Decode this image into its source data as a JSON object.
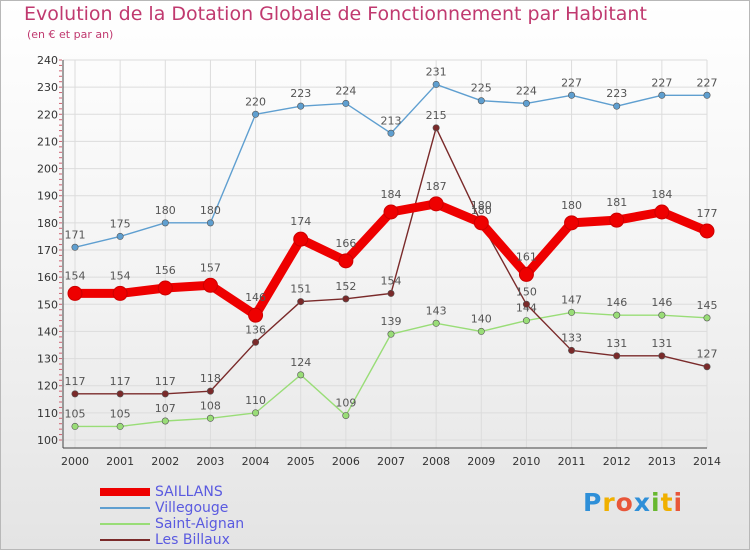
{
  "chart_data": {
    "type": "line",
    "title": "Evolution de la Dotation Globale de Fonctionnement par Habitant",
    "subtitle": "(en € et par an)",
    "xlabel": "",
    "ylabel": "",
    "ylim": [
      100,
      240
    ],
    "yticks": [
      100,
      110,
      120,
      130,
      140,
      150,
      160,
      170,
      180,
      190,
      200,
      210,
      220,
      230,
      240
    ],
    "x": [
      2000,
      2001,
      2002,
      2003,
      2004,
      2005,
      2006,
      2007,
      2008,
      2009,
      2010,
      2011,
      2012,
      2013,
      2014
    ],
    "legend_position": "bottom-left",
    "series": [
      {
        "name": "SAILLANS",
        "color": "#ee0000",
        "values": [
          154,
          154,
          156,
          157,
          146,
          174,
          166,
          184,
          187,
          180,
          161,
          180,
          181,
          184,
          177
        ]
      },
      {
        "name": "Villegouge",
        "color": "#5f9fd0",
        "values": [
          171,
          175,
          180,
          180,
          220,
          223,
          224,
          213,
          231,
          225,
          224,
          227,
          223,
          227,
          227
        ]
      },
      {
        "name": "Saint-Aignan",
        "color": "#99dd77",
        "values": [
          105,
          105,
          107,
          108,
          110,
          124,
          109,
          139,
          143,
          140,
          144,
          147,
          146,
          146,
          145
        ]
      },
      {
        "name": "Les Billaux",
        "color": "#7a2a2a",
        "values": [
          117,
          117,
          117,
          118,
          136,
          151,
          152,
          154,
          215,
          180,
          150,
          133,
          131,
          131,
          127
        ]
      }
    ]
  },
  "logo": {
    "letters": [
      "P",
      "r",
      "o",
      "x",
      "i",
      "t",
      "i"
    ],
    "colors": [
      "#2e8fd8",
      "#f0b000",
      "#e8563a",
      "#2e8fd8",
      "#68b82f",
      "#f0b000",
      "#e8563a"
    ]
  }
}
